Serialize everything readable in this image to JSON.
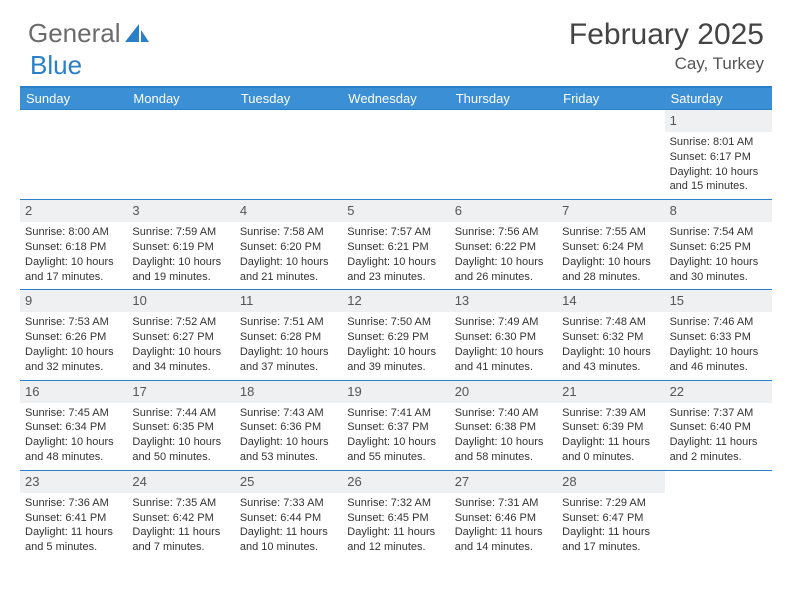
{
  "logo": {
    "text1": "General",
    "text2": "Blue"
  },
  "title": "February 2025",
  "location": "Cay, Turkey",
  "colors": {
    "header_bg": "#3b8fd4",
    "border": "#2a7fc9",
    "daynum_bg": "#eef0f2",
    "text": "#333333"
  },
  "weekdays": [
    "Sunday",
    "Monday",
    "Tuesday",
    "Wednesday",
    "Thursday",
    "Friday",
    "Saturday"
  ],
  "weeks": [
    [
      null,
      null,
      null,
      null,
      null,
      null,
      {
        "n": "1",
        "sr": "8:01 AM",
        "ss": "6:17 PM",
        "dl": "10 hours and 15 minutes."
      }
    ],
    [
      {
        "n": "2",
        "sr": "8:00 AM",
        "ss": "6:18 PM",
        "dl": "10 hours and 17 minutes."
      },
      {
        "n": "3",
        "sr": "7:59 AM",
        "ss": "6:19 PM",
        "dl": "10 hours and 19 minutes."
      },
      {
        "n": "4",
        "sr": "7:58 AM",
        "ss": "6:20 PM",
        "dl": "10 hours and 21 minutes."
      },
      {
        "n": "5",
        "sr": "7:57 AM",
        "ss": "6:21 PM",
        "dl": "10 hours and 23 minutes."
      },
      {
        "n": "6",
        "sr": "7:56 AM",
        "ss": "6:22 PM",
        "dl": "10 hours and 26 minutes."
      },
      {
        "n": "7",
        "sr": "7:55 AM",
        "ss": "6:24 PM",
        "dl": "10 hours and 28 minutes."
      },
      {
        "n": "8",
        "sr": "7:54 AM",
        "ss": "6:25 PM",
        "dl": "10 hours and 30 minutes."
      }
    ],
    [
      {
        "n": "9",
        "sr": "7:53 AM",
        "ss": "6:26 PM",
        "dl": "10 hours and 32 minutes."
      },
      {
        "n": "10",
        "sr": "7:52 AM",
        "ss": "6:27 PM",
        "dl": "10 hours and 34 minutes."
      },
      {
        "n": "11",
        "sr": "7:51 AM",
        "ss": "6:28 PM",
        "dl": "10 hours and 37 minutes."
      },
      {
        "n": "12",
        "sr": "7:50 AM",
        "ss": "6:29 PM",
        "dl": "10 hours and 39 minutes."
      },
      {
        "n": "13",
        "sr": "7:49 AM",
        "ss": "6:30 PM",
        "dl": "10 hours and 41 minutes."
      },
      {
        "n": "14",
        "sr": "7:48 AM",
        "ss": "6:32 PM",
        "dl": "10 hours and 43 minutes."
      },
      {
        "n": "15",
        "sr": "7:46 AM",
        "ss": "6:33 PM",
        "dl": "10 hours and 46 minutes."
      }
    ],
    [
      {
        "n": "16",
        "sr": "7:45 AM",
        "ss": "6:34 PM",
        "dl": "10 hours and 48 minutes."
      },
      {
        "n": "17",
        "sr": "7:44 AM",
        "ss": "6:35 PM",
        "dl": "10 hours and 50 minutes."
      },
      {
        "n": "18",
        "sr": "7:43 AM",
        "ss": "6:36 PM",
        "dl": "10 hours and 53 minutes."
      },
      {
        "n": "19",
        "sr": "7:41 AM",
        "ss": "6:37 PM",
        "dl": "10 hours and 55 minutes."
      },
      {
        "n": "20",
        "sr": "7:40 AM",
        "ss": "6:38 PM",
        "dl": "10 hours and 58 minutes."
      },
      {
        "n": "21",
        "sr": "7:39 AM",
        "ss": "6:39 PM",
        "dl": "11 hours and 0 minutes."
      },
      {
        "n": "22",
        "sr": "7:37 AM",
        "ss": "6:40 PM",
        "dl": "11 hours and 2 minutes."
      }
    ],
    [
      {
        "n": "23",
        "sr": "7:36 AM",
        "ss": "6:41 PM",
        "dl": "11 hours and 5 minutes."
      },
      {
        "n": "24",
        "sr": "7:35 AM",
        "ss": "6:42 PM",
        "dl": "11 hours and 7 minutes."
      },
      {
        "n": "25",
        "sr": "7:33 AM",
        "ss": "6:44 PM",
        "dl": "11 hours and 10 minutes."
      },
      {
        "n": "26",
        "sr": "7:32 AM",
        "ss": "6:45 PM",
        "dl": "11 hours and 12 minutes."
      },
      {
        "n": "27",
        "sr": "7:31 AM",
        "ss": "6:46 PM",
        "dl": "11 hours and 14 minutes."
      },
      {
        "n": "28",
        "sr": "7:29 AM",
        "ss": "6:47 PM",
        "dl": "11 hours and 17 minutes."
      },
      null
    ]
  ],
  "labels": {
    "sunrise": "Sunrise:",
    "sunset": "Sunset:",
    "daylight": "Daylight:"
  }
}
